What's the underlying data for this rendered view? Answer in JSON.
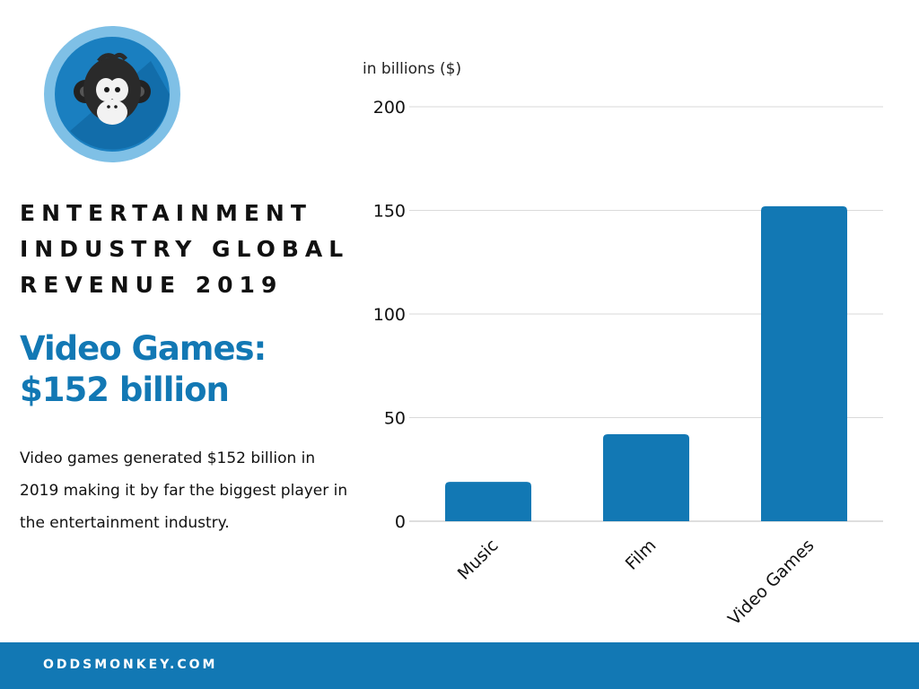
{
  "brand": {
    "logo_icon": "monkey-face-icon",
    "footer_text": "ODDSMONKEY.COM",
    "accent_color": "#1278b4"
  },
  "heading": {
    "title_lines": [
      "ENTERTAINMENT",
      "INDUSTRY GLOBAL",
      "REVENUE 2019"
    ],
    "highlight_lines": [
      "Video Games:",
      "$152 billion"
    ],
    "description": "Video games generated $152 billion in 2019 making it by far the biggest player in the entertainment industry."
  },
  "chart_data": {
    "type": "bar",
    "title": "",
    "xlabel": "",
    "ylabel": "in billions ($)",
    "categories": [
      "Music",
      "Film",
      "Video Games"
    ],
    "values": [
      19,
      42,
      152
    ],
    "ylim": [
      0,
      200
    ],
    "yticks": [
      0,
      50,
      100,
      150,
      200
    ],
    "grid": true,
    "bar_color": "#1278b4"
  }
}
